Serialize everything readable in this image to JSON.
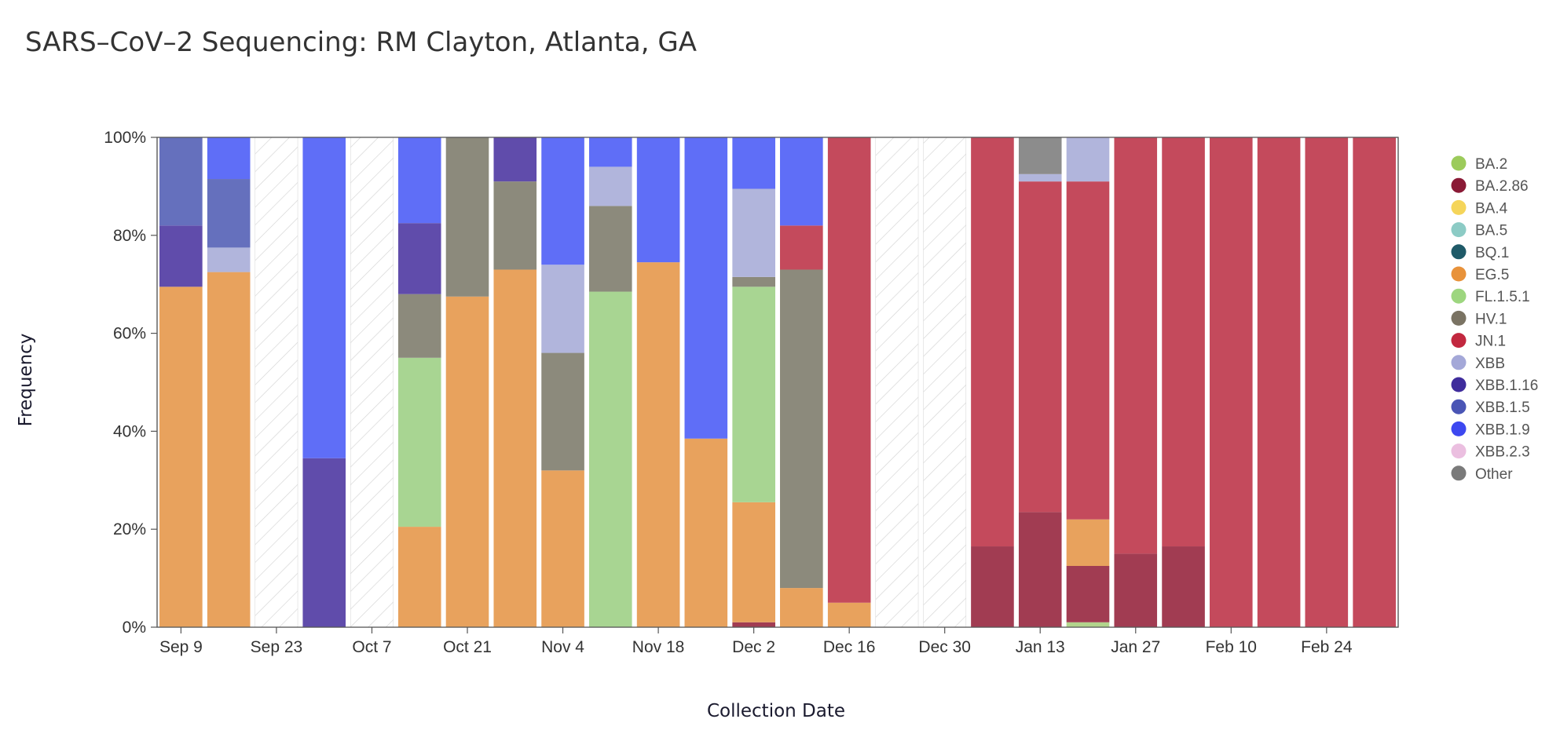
{
  "chart_data": {
    "type": "bar",
    "stacked": "percent",
    "title": "SARS–CoV–2 Sequencing: RM Clayton, Atlanta, GA",
    "xlabel": "Collection Date",
    "ylabel": "Frequency",
    "ylim": [
      0,
      100
    ],
    "y_ticks": [
      "0%",
      "20%",
      "40%",
      "60%",
      "80%",
      "100%"
    ],
    "x_tick_labels": [
      "Sep 9",
      "Sep 23",
      "Oct 7",
      "Oct 21",
      "Nov 4",
      "Nov 18",
      "Dec 2",
      "Dec 16",
      "Dec 30",
      "Jan 13",
      "Jan 27",
      "Feb 10",
      "Feb 24"
    ],
    "legend_position": "right",
    "legend": [
      "BA.2",
      "BA.2.86",
      "BA.4",
      "BA.5",
      "BQ.1",
      "EG.5",
      "FL.1.5.1",
      "HV.1",
      "JN.1",
      "XBB",
      "XBB.1.16",
      "XBB.1.5",
      "XBB.1.9",
      "XBB.2.3",
      "Other"
    ],
    "legend_colors": {
      "BA.2": "#9ccb5b",
      "BA.2.86": "#8a1a36",
      "BA.4": "#f5d55a",
      "BA.5": "#8ccbc5",
      "BQ.1": "#1f5a68",
      "EG.5": "#e8923a",
      "FL.1.5.1": "#9dd67f",
      "HV.1": "#7a7363",
      "JN.1": "#c2283f",
      "XBB": "#a4a8d8",
      "XBB.1.16": "#3f2c9c",
      "XBB.1.5": "#4a55b5",
      "XBB.1.9": "#3d48f0",
      "XBB.2.3": "#ebbfe0",
      "Other": "#7a7a7a"
    },
    "bar_colors": {
      "BA.2": "#b2d48c",
      "BA.2.86": "#a13c52",
      "EG.5": "#e8a25d",
      "FL.1.5.1": "#a8d592",
      "HV.1": "#8c8a7c",
      "JN.1": "#c44a5c",
      "XBB": "#b1b5dc",
      "XBB.1.16": "#604cab",
      "XBB.1.5": "#6570bd",
      "XBB.1.9": "#5f6ef7",
      "Other": "#8c8c8c"
    },
    "nodata_color": "#d4d4d4",
    "categories": [
      "Sep 9",
      "Sep 16",
      "Sep 23",
      "Sep 30",
      "Oct 7",
      "Oct 14",
      "Oct 21",
      "Oct 28",
      "Nov 4",
      "Nov 11",
      "Nov 18",
      "Nov 25",
      "Dec 2",
      "Dec 9",
      "Dec 16",
      "Dec 23",
      "Dec 30",
      "Jan 6",
      "Jan 13",
      "Jan 20",
      "Jan 27",
      "Feb 3",
      "Feb 10",
      "Feb 17",
      "Feb 24",
      "Mar 2"
    ],
    "bars": [
      [
        {
          "v": "EG.5",
          "p": 69.5
        },
        {
          "v": "XBB.1.16",
          "p": 12.5
        },
        {
          "v": "XBB.1.5",
          "p": 18
        }
      ],
      [
        {
          "v": "EG.5",
          "p": 72.5
        },
        {
          "v": "XBB",
          "p": 5
        },
        {
          "v": "XBB.1.5",
          "p": 14
        },
        {
          "v": "XBB.1.9",
          "p": 8.5
        }
      ],
      [],
      [
        {
          "v": "XBB.1.16",
          "p": 34.5
        },
        {
          "v": "XBB.1.9",
          "p": 65.5
        }
      ],
      [],
      [
        {
          "v": "EG.5",
          "p": 20.5
        },
        {
          "v": "FL.1.5.1",
          "p": 34.5
        },
        {
          "v": "HV.1",
          "p": 13
        },
        {
          "v": "XBB.1.16",
          "p": 14.5
        },
        {
          "v": "XBB.1.9",
          "p": 17.5
        }
      ],
      [
        {
          "v": "EG.5",
          "p": 67.5
        },
        {
          "v": "HV.1",
          "p": 32.5
        }
      ],
      [
        {
          "v": "EG.5",
          "p": 73
        },
        {
          "v": "HV.1",
          "p": 18
        },
        {
          "v": "XBB.1.16",
          "p": 9
        }
      ],
      [
        {
          "v": "EG.5",
          "p": 32
        },
        {
          "v": "HV.1",
          "p": 24
        },
        {
          "v": "XBB",
          "p": 18
        },
        {
          "v": "XBB.1.9",
          "p": 26
        }
      ],
      [
        {
          "v": "FL.1.5.1",
          "p": 68.5
        },
        {
          "v": "HV.1",
          "p": 17.5
        },
        {
          "v": "XBB",
          "p": 8
        },
        {
          "v": "XBB.1.9",
          "p": 6
        }
      ],
      [
        {
          "v": "EG.5",
          "p": 74.5
        },
        {
          "v": "XBB.1.9",
          "p": 25.5
        }
      ],
      [
        {
          "v": "EG.5",
          "p": 38.5
        },
        {
          "v": "XBB.1.9",
          "p": 61.5
        }
      ],
      [
        {
          "v": "BA.2.86",
          "p": 1
        },
        {
          "v": "EG.5",
          "p": 24.5
        },
        {
          "v": "FL.1.5.1",
          "p": 44
        },
        {
          "v": "HV.1",
          "p": 2
        },
        {
          "v": "XBB",
          "p": 18
        },
        {
          "v": "XBB.1.9",
          "p": 10.5
        }
      ],
      [
        {
          "v": "EG.5",
          "p": 8
        },
        {
          "v": "HV.1",
          "p": 65
        },
        {
          "v": "JN.1",
          "p": 9
        },
        {
          "v": "XBB.1.9",
          "p": 18
        }
      ],
      [
        {
          "v": "EG.5",
          "p": 5
        },
        {
          "v": "JN.1",
          "p": 95
        }
      ],
      [],
      [],
      [
        {
          "v": "BA.2.86",
          "p": 16.5
        },
        {
          "v": "JN.1",
          "p": 83.5
        }
      ],
      [
        {
          "v": "BA.2.86",
          "p": 23.5
        },
        {
          "v": "JN.1",
          "p": 67.5
        },
        {
          "v": "XBB",
          "p": 1.5
        },
        {
          "v": "Other",
          "p": 7.5
        }
      ],
      [
        {
          "v": "BA.2",
          "p": 1
        },
        {
          "v": "BA.2.86",
          "p": 11.5
        },
        {
          "v": "EG.5",
          "p": 9.5
        },
        {
          "v": "JN.1",
          "p": 69
        },
        {
          "v": "XBB",
          "p": 9
        }
      ],
      [
        {
          "v": "BA.2.86",
          "p": 15
        },
        {
          "v": "JN.1",
          "p": 85
        }
      ],
      [
        {
          "v": "BA.2.86",
          "p": 16.5
        },
        {
          "v": "JN.1",
          "p": 83.5
        }
      ],
      [
        {
          "v": "JN.1",
          "p": 100
        }
      ],
      [
        {
          "v": "JN.1",
          "p": 100
        }
      ],
      [
        {
          "v": "JN.1",
          "p": 100
        }
      ],
      [
        {
          "v": "JN.1",
          "p": 100
        }
      ]
    ]
  }
}
